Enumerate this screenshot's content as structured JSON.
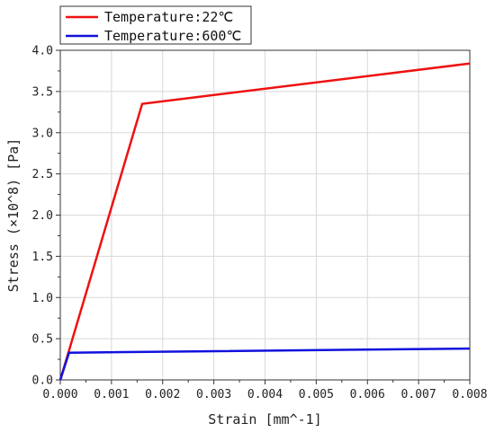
{
  "chart_data": {
    "type": "line",
    "xlabel": "Strain [mm^-1]",
    "ylabel": "Stress (×10^8) [Pa]",
    "xlim": [
      0,
      0.008
    ],
    "ylim": [
      0,
      4.0
    ],
    "xticks": [
      0.0,
      0.001,
      0.002,
      0.003,
      0.004,
      0.005,
      0.006,
      0.007,
      0.008
    ],
    "xtick_labels": [
      "0.000",
      "0.001",
      "0.002",
      "0.003",
      "0.004",
      "0.005",
      "0.006",
      "0.007",
      "0.008"
    ],
    "yticks": [
      0,
      0.5,
      1.0,
      1.5,
      2.0,
      2.5,
      3.0,
      3.5,
      4.0
    ],
    "ytick_labels": [
      "0.0",
      "0.5",
      "1.0",
      "1.5",
      "2.0",
      "2.5",
      "3.0",
      "3.5",
      "4.0"
    ],
    "grid": true,
    "legend_position": "top-left",
    "series": [
      {
        "name": "Temperature:22℃",
        "color": "#ee1111",
        "x": [
          0,
          0.0016,
          0.008
        ],
        "y": [
          0,
          3.35,
          3.84
        ]
      },
      {
        "name": "Temperature:600℃",
        "color": "#1111dd",
        "x": [
          0,
          0.00017,
          0.008
        ],
        "y": [
          0,
          0.33,
          0.38
        ]
      }
    ]
  }
}
